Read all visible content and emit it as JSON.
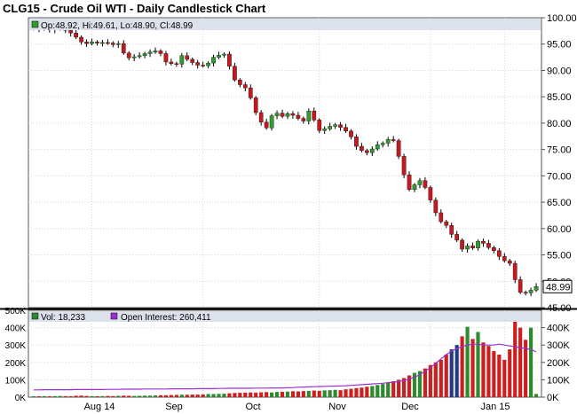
{
  "chart_data": [
    {
      "type": "candlestick",
      "title": "CLG15 - Crude Oil WTI - Daily Candlestick Chart",
      "legend": {
        "ohlc_text": "Op:48.92, Hi:49.61, Lo:48.90, Cl:48.99"
      },
      "last_price_label": "48.99",
      "y_range": [
        45,
        100
      ],
      "y_ticks": [
        "100.00",
        "95.00",
        "90.00",
        "85.00",
        "80.00",
        "75.00",
        "70.00",
        "65.00",
        "60.00",
        "55.00",
        "50.00",
        "45.00"
      ],
      "x_tick_labels": [
        "Aug 14",
        "Sep",
        "Oct",
        "Nov",
        "Dec",
        "Jan 15"
      ],
      "grid": true,
      "colors": {
        "up": "#2e9e2e",
        "down": "#c8181e",
        "wick": "#000000",
        "grid": "#cfd3dd",
        "legend_bg": "#dde1ec"
      },
      "closes": [
        98.1,
        97.9,
        98.3,
        97.7,
        97.9,
        98.0,
        97.6,
        97.1,
        96.3,
        95.4,
        95.1,
        95.4,
        95.2,
        95.3,
        95.2,
        94.9,
        95.1,
        93.3,
        92.4,
        92.6,
        92.8,
        93.2,
        93.5,
        93.7,
        93.2,
        91.6,
        91.3,
        91.2,
        92.8,
        92.1,
        91.5,
        91.0,
        90.9,
        91.4,
        92.5,
        92.9,
        93.1,
        90.8,
        88.2,
        87.3,
        86.7,
        84.8,
        82.0,
        80.2,
        79.1,
        81.4,
        81.9,
        81.3,
        81.8,
        81.5,
        80.9,
        80.4,
        82.3,
        80.6,
        78.6,
        78.9,
        79.4,
        79.7,
        79.2,
        78.5,
        77.4,
        75.6,
        74.8,
        74.4,
        75.1,
        75.9,
        76.2,
        76.9,
        76.7,
        73.7,
        70.2,
        67.4,
        68.3,
        69.1,
        67.8,
        65.4,
        63.0,
        61.3,
        60.6,
        58.9,
        57.8,
        56.1,
        56.7,
        56.3,
        57.6,
        57.2,
        56.4,
        55.8,
        54.7,
        53.9,
        53.4,
        50.3,
        47.9,
        47.8,
        48.3,
        48.99
      ]
    },
    {
      "type": "bar+line",
      "legend": {
        "volume": "Vol: 18,233",
        "open_interest": "Open Interest: 260,411"
      },
      "y_range": [
        0,
        500000
      ],
      "y_ticks_left": [
        "500K",
        "400K",
        "300K",
        "200K",
        "100K",
        "0K"
      ],
      "y_ticks_right": [
        "400K",
        "300K",
        "200K",
        "100K",
        "0K"
      ],
      "x_tick_labels": [
        "Aug 14",
        "Sep",
        "Oct",
        "Nov",
        "Dec",
        "Jan 15"
      ],
      "colors": {
        "volume_up": "#2e8a2e",
        "volume_down": "#cc1f1f",
        "volume_other": "#223a86",
        "open_interest": "#9b30d0"
      },
      "volume": [
        5000,
        5000,
        6000,
        5000,
        6000,
        7000,
        6000,
        5000,
        8000,
        9000,
        7000,
        6000,
        5000,
        6000,
        7000,
        6000,
        8000,
        9000,
        8000,
        7000,
        8000,
        9000,
        9000,
        10000,
        11000,
        11000,
        12000,
        13000,
        14000,
        14000,
        15000,
        15000,
        16000,
        18000,
        18000,
        19000,
        20000,
        22000,
        24000,
        25000,
        26000,
        27000,
        26000,
        28000,
        29000,
        27000,
        30000,
        31000,
        32000,
        34000,
        33000,
        35000,
        36000,
        38000,
        36000,
        39000,
        40000,
        42000,
        40000,
        45000,
        48000,
        52000,
        55000,
        60000,
        64000,
        70000,
        76000,
        85000,
        92000,
        100000,
        110000,
        125000,
        140000,
        150000,
        165000,
        185000,
        200000,
        215000,
        245000,
        275000,
        300000,
        350000,
        405000,
        335000,
        375000,
        315000,
        295000,
        265000,
        245000,
        215000,
        275000,
        440000,
        400000,
        330000,
        400000,
        18233
      ],
      "open_interest": [
        42000,
        42000,
        43000,
        43000,
        43000,
        43000,
        43000,
        43000,
        44000,
        44000,
        44000,
        44000,
        44000,
        44000,
        45000,
        45000,
        45000,
        46000,
        46000,
        46000,
        46000,
        47000,
        47000,
        47000,
        47000,
        47000,
        48000,
        48000,
        48000,
        48000,
        48000,
        49000,
        49000,
        49000,
        49000,
        50000,
        50000,
        51000,
        51000,
        51000,
        51000,
        51000,
        52000,
        52000,
        52000,
        53000,
        53000,
        53000,
        54000,
        55000,
        57000,
        58000,
        59000,
        60000,
        61000,
        62000,
        63000,
        64000,
        65000,
        66000,
        68000,
        70000,
        72000,
        74000,
        76000,
        78000,
        80000,
        83000,
        86000,
        90000,
        95000,
        105000,
        115000,
        130000,
        150000,
        170000,
        195000,
        220000,
        245000,
        265000,
        280000,
        290000,
        300000,
        305000,
        305000,
        300000,
        300000,
        300000,
        305000,
        300000,
        295000,
        290000,
        285000,
        280000,
        275000,
        260411
      ]
    }
  ]
}
